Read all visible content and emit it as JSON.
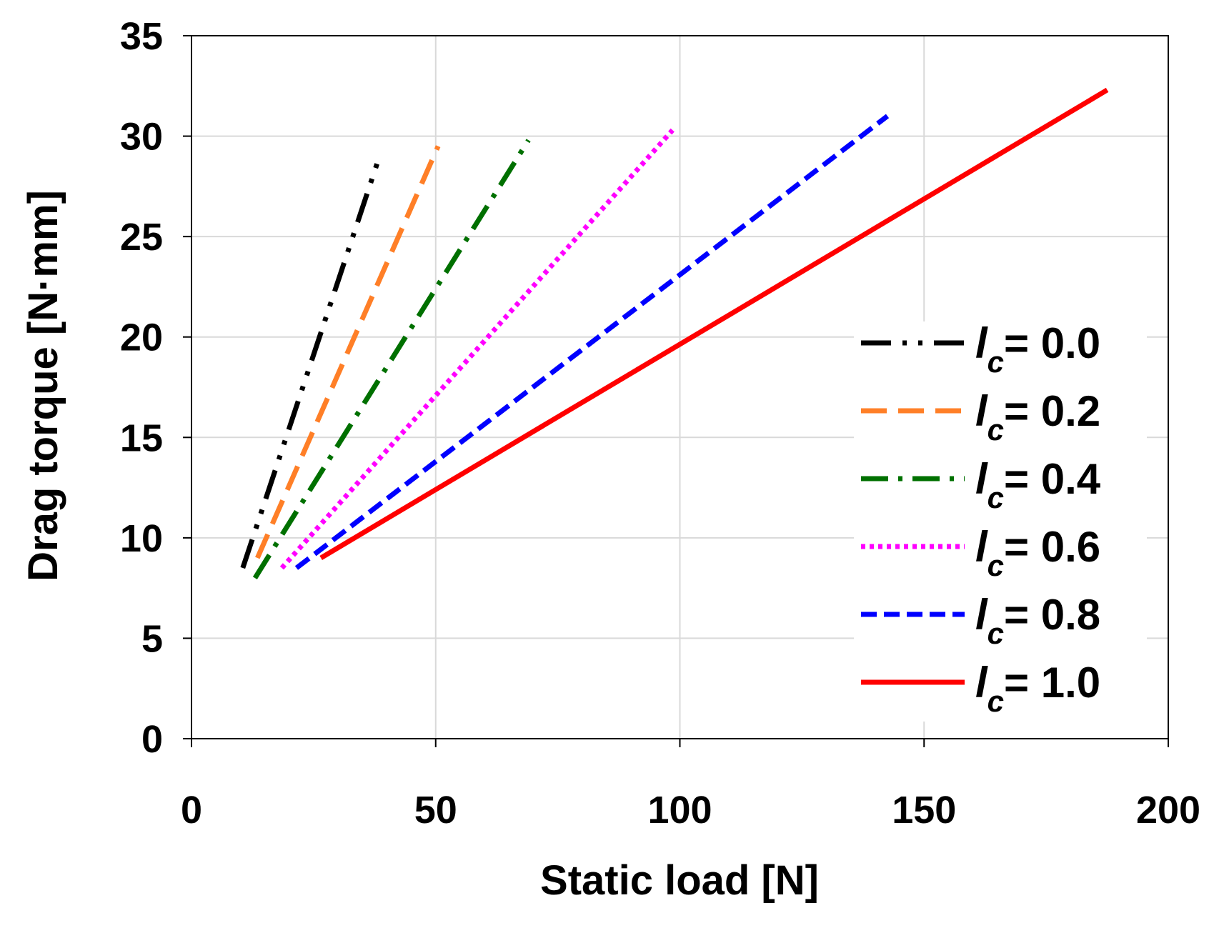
{
  "chart_data": {
    "type": "line",
    "title": "",
    "xlabel": "Static load [N]",
    "ylabel": "Drag torque [N·mm]",
    "xlim": [
      0,
      200
    ],
    "ylim": [
      0,
      35
    ],
    "xticks": [
      0,
      50,
      100,
      150,
      200
    ],
    "yticks": [
      0,
      5,
      10,
      15,
      20,
      25,
      30,
      35
    ],
    "xtick_labels": [
      "0",
      "50",
      "100",
      "150",
      "200"
    ],
    "ytick_labels": [
      "0",
      "5",
      "10",
      "15",
      "20",
      "25",
      "30",
      "35"
    ],
    "grid": true,
    "legend_position": "right",
    "series": [
      {
        "name": "= 0.0",
        "symbol": "l",
        "subscript": "c",
        "color": "#000000",
        "style": "dash-dot-dot",
        "x": [
          10.5,
          38.5
        ],
        "y": [
          8.5,
          29.0
        ]
      },
      {
        "name": "= 0.2",
        "symbol": "l",
        "subscript": "c",
        "color": "#ff7f27",
        "style": "long-dash",
        "x": [
          13.5,
          50.5
        ],
        "y": [
          9.0,
          29.5
        ]
      },
      {
        "name": "= 0.4",
        "symbol": "l",
        "subscript": "c",
        "color": "#007000",
        "style": "dash-dot",
        "x": [
          13.0,
          69.0
        ],
        "y": [
          8.0,
          29.8
        ]
      },
      {
        "name": "= 0.6",
        "symbol": "l",
        "subscript": "c",
        "color": "#ff00ff",
        "style": "dotted",
        "x": [
          18.5,
          98.5
        ],
        "y": [
          8.5,
          30.3
        ]
      },
      {
        "name": "= 0.8",
        "symbol": "l",
        "subscript": "c",
        "color": "#0000ff",
        "style": "dashed",
        "x": [
          21.5,
          142.5
        ],
        "y": [
          8.5,
          31.0
        ]
      },
      {
        "name": "= 1.0",
        "symbol": "l",
        "subscript": "c",
        "color": "#ff0000",
        "style": "solid",
        "x": [
          26.5,
          187.5
        ],
        "y": [
          9.0,
          32.3
        ]
      }
    ]
  }
}
